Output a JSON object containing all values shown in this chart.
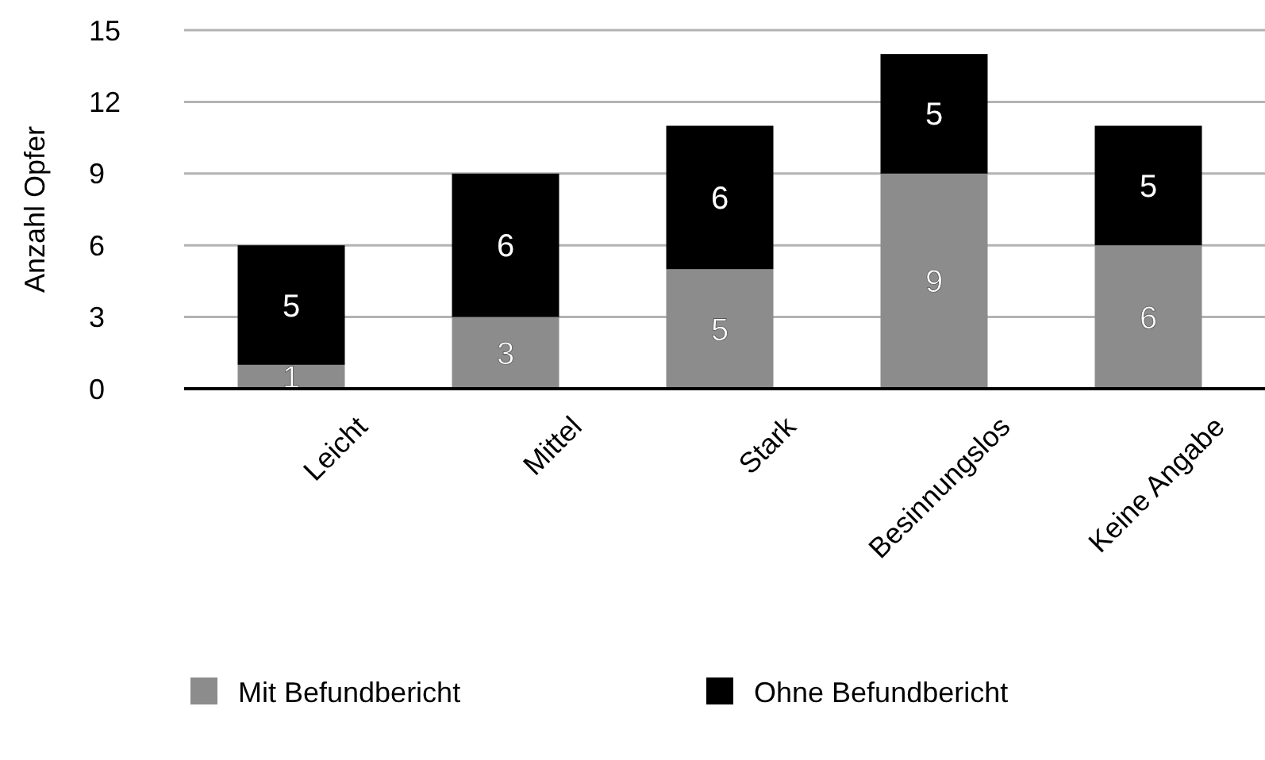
{
  "chart_data": {
    "type": "bar",
    "stacked": true,
    "ylabel": "Anzahl Opfer",
    "categories": [
      "Leicht",
      "Mittel",
      "Stark",
      "Besinnungslos",
      "Keine Angabe"
    ],
    "series": [
      {
        "name": "Mit Befundbericht",
        "color": "#8c8c8c",
        "values": [
          1,
          3,
          5,
          9,
          6
        ]
      },
      {
        "name": "Ohne Befundbericht",
        "color": "#000000",
        "values": [
          5,
          6,
          6,
          5,
          5
        ]
      }
    ],
    "ylim": [
      0,
      15
    ],
    "yticks": [
      0,
      3,
      6,
      9,
      12,
      15
    ],
    "grid": "y",
    "legend": "bottom",
    "data_labels": true
  }
}
